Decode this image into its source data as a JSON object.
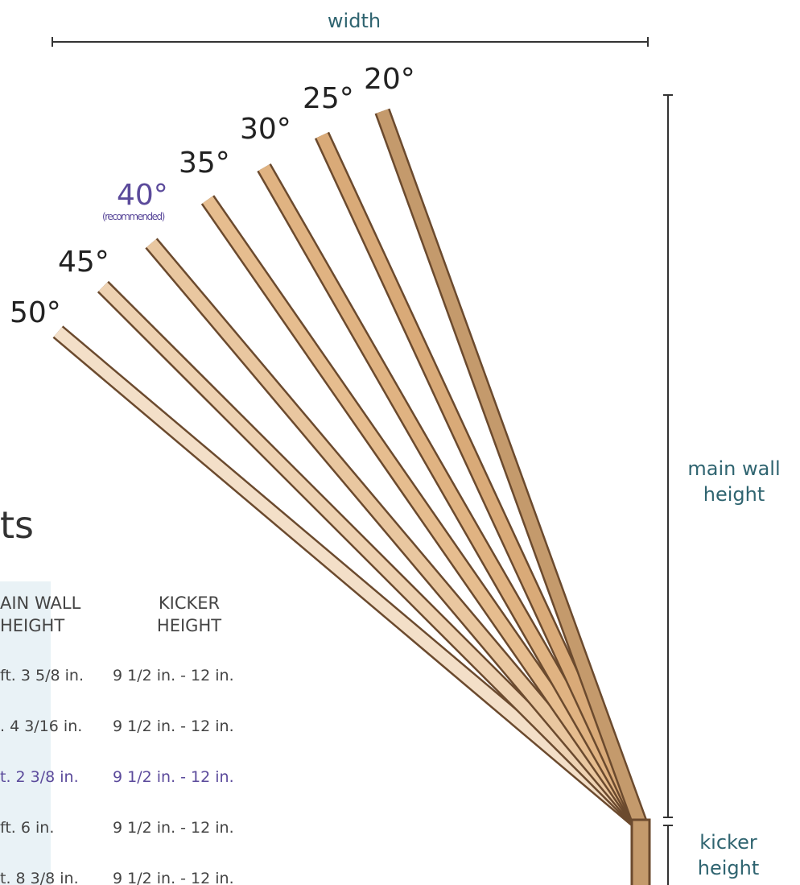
{
  "dimensions": {
    "width": "width",
    "main_wall_height": "main wall height",
    "kicker_height": "kicker height"
  },
  "angles": [
    "20°",
    "25°",
    "30°",
    "35°",
    "40°",
    "45°",
    "50°"
  ],
  "recommended_index": 4,
  "recommended_note": "(recommended)",
  "table": {
    "title": "ts",
    "headers": [
      "AIN WALL HEIGHT",
      "KICKER HEIGHT"
    ],
    "highlight_row": 2,
    "rows": [
      [
        "ft. 3 5/8 in.",
        "9 1/2 in. - 12 in."
      ],
      [
        ". 4 3/16 in.",
        "9 1/2 in. - 12 in."
      ],
      [
        "t. 2 3/8 in.",
        "9 1/2 in. - 12 in."
      ],
      [
        "ft. 6 in.",
        "9 1/2 in. - 12 in."
      ],
      [
        "t. 8 3/8 in.",
        "9 1/2 in. - 12 in."
      ]
    ]
  }
}
